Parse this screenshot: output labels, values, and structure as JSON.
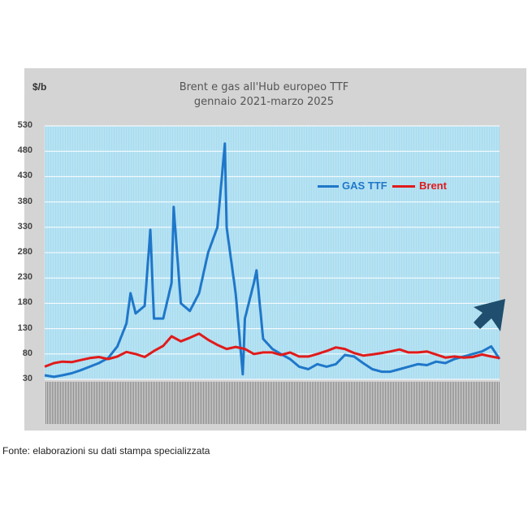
{
  "source_note": "Fonte: elaborazioni su dati stampa specializzata",
  "arrow_color": "#1f4e6e",
  "chart_data": {
    "type": "line",
    "title": "Brent e gas all'Hub europeo TTF",
    "subtitle": "gennaio 2021-marzo 2025",
    "ylabel": "$/b",
    "ylim": [
      30,
      530
    ],
    "yticks": [
      30,
      80,
      130,
      180,
      230,
      280,
      330,
      380,
      430,
      480,
      530
    ],
    "grid": true,
    "legend_position": "top-right",
    "x_range": [
      "2021-01",
      "2025-03"
    ],
    "series": [
      {
        "name": "GAS  TTF",
        "color": "#1f77c9",
        "points": [
          [
            "2021-01",
            38
          ],
          [
            "2021-02",
            35
          ],
          [
            "2021-03",
            38
          ],
          [
            "2021-04",
            42
          ],
          [
            "2021-05",
            48
          ],
          [
            "2021-06",
            55
          ],
          [
            "2021-07",
            62
          ],
          [
            "2021-08",
            72
          ],
          [
            "2021-09",
            95
          ],
          [
            "2021-10",
            140
          ],
          [
            "2021-10-15",
            200
          ],
          [
            "2021-11",
            160
          ],
          [
            "2021-12",
            175
          ],
          [
            "2021-12-20",
            325
          ],
          [
            "2022-01",
            150
          ],
          [
            "2022-02",
            150
          ],
          [
            "2022-03",
            220
          ],
          [
            "2022-03-08",
            370
          ],
          [
            "2022-04",
            180
          ],
          [
            "2022-05",
            165
          ],
          [
            "2022-06",
            200
          ],
          [
            "2022-07",
            280
          ],
          [
            "2022-08",
            330
          ],
          [
            "2022-08-26",
            495
          ],
          [
            "2022-09",
            330
          ],
          [
            "2022-10",
            200
          ],
          [
            "2022-10-25",
            40
          ],
          [
            "2022-11",
            150
          ],
          [
            "2022-12",
            220
          ],
          [
            "2022-12-10",
            245
          ],
          [
            "2023-01",
            110
          ],
          [
            "2023-02",
            90
          ],
          [
            "2023-03",
            80
          ],
          [
            "2023-04",
            70
          ],
          [
            "2023-05",
            55
          ],
          [
            "2023-06",
            50
          ],
          [
            "2023-07",
            60
          ],
          [
            "2023-08",
            55
          ],
          [
            "2023-09",
            60
          ],
          [
            "2023-10",
            78
          ],
          [
            "2023-11",
            75
          ],
          [
            "2023-12",
            62
          ],
          [
            "2024-01",
            50
          ],
          [
            "2024-02",
            45
          ],
          [
            "2024-03",
            45
          ],
          [
            "2024-04",
            50
          ],
          [
            "2024-05",
            55
          ],
          [
            "2024-06",
            60
          ],
          [
            "2024-07",
            58
          ],
          [
            "2024-08",
            65
          ],
          [
            "2024-09",
            62
          ],
          [
            "2024-10",
            70
          ],
          [
            "2024-11",
            75
          ],
          [
            "2024-12",
            80
          ],
          [
            "2025-01",
            85
          ],
          [
            "2025-02",
            95
          ],
          [
            "2025-03",
            70
          ]
        ]
      },
      {
        "name": "Brent",
        "color": "#e01b1b",
        "points": [
          [
            "2021-01",
            55
          ],
          [
            "2021-02",
            62
          ],
          [
            "2021-03",
            65
          ],
          [
            "2021-04",
            64
          ],
          [
            "2021-05",
            68
          ],
          [
            "2021-06",
            72
          ],
          [
            "2021-07",
            74
          ],
          [
            "2021-08",
            70
          ],
          [
            "2021-09",
            75
          ],
          [
            "2021-10",
            84
          ],
          [
            "2021-11",
            80
          ],
          [
            "2021-12",
            74
          ],
          [
            "2022-01",
            86
          ],
          [
            "2022-02",
            96
          ],
          [
            "2022-03",
            115
          ],
          [
            "2022-04",
            105
          ],
          [
            "2022-05",
            112
          ],
          [
            "2022-06",
            120
          ],
          [
            "2022-07",
            108
          ],
          [
            "2022-08",
            98
          ],
          [
            "2022-09",
            90
          ],
          [
            "2022-10",
            94
          ],
          [
            "2022-11",
            90
          ],
          [
            "2022-12",
            80
          ],
          [
            "2023-01",
            83
          ],
          [
            "2023-02",
            83
          ],
          [
            "2023-03",
            78
          ],
          [
            "2023-04",
            83
          ],
          [
            "2023-05",
            75
          ],
          [
            "2023-06",
            75
          ],
          [
            "2023-07",
            80
          ],
          [
            "2023-08",
            86
          ],
          [
            "2023-09",
            93
          ],
          [
            "2023-10",
            90
          ],
          [
            "2023-11",
            82
          ],
          [
            "2023-12",
            77
          ],
          [
            "2024-01",
            79
          ],
          [
            "2024-02",
            82
          ],
          [
            "2024-03",
            85
          ],
          [
            "2024-04",
            89
          ],
          [
            "2024-05",
            83
          ],
          [
            "2024-06",
            83
          ],
          [
            "2024-07",
            85
          ],
          [
            "2024-08",
            79
          ],
          [
            "2024-09",
            73
          ],
          [
            "2024-10",
            75
          ],
          [
            "2024-11",
            73
          ],
          [
            "2024-12",
            74
          ],
          [
            "2025-01",
            79
          ],
          [
            "2025-02",
            75
          ],
          [
            "2025-03",
            72
          ]
        ]
      }
    ]
  }
}
